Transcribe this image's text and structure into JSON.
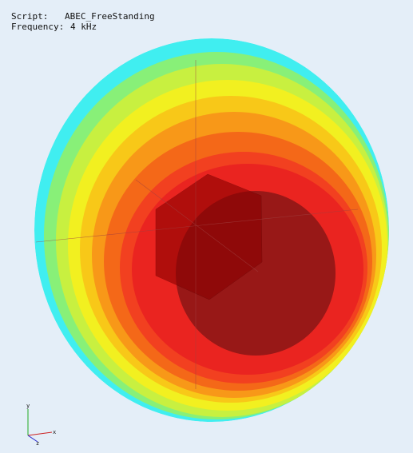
{
  "header": {
    "script_label": "Script:",
    "script_value": "ABEC_FreeStanding",
    "frequency_label": "Frequency:",
    "frequency_value": "4 kHz"
  },
  "axes": {
    "x": "x",
    "y": "y",
    "z": "z"
  }
}
